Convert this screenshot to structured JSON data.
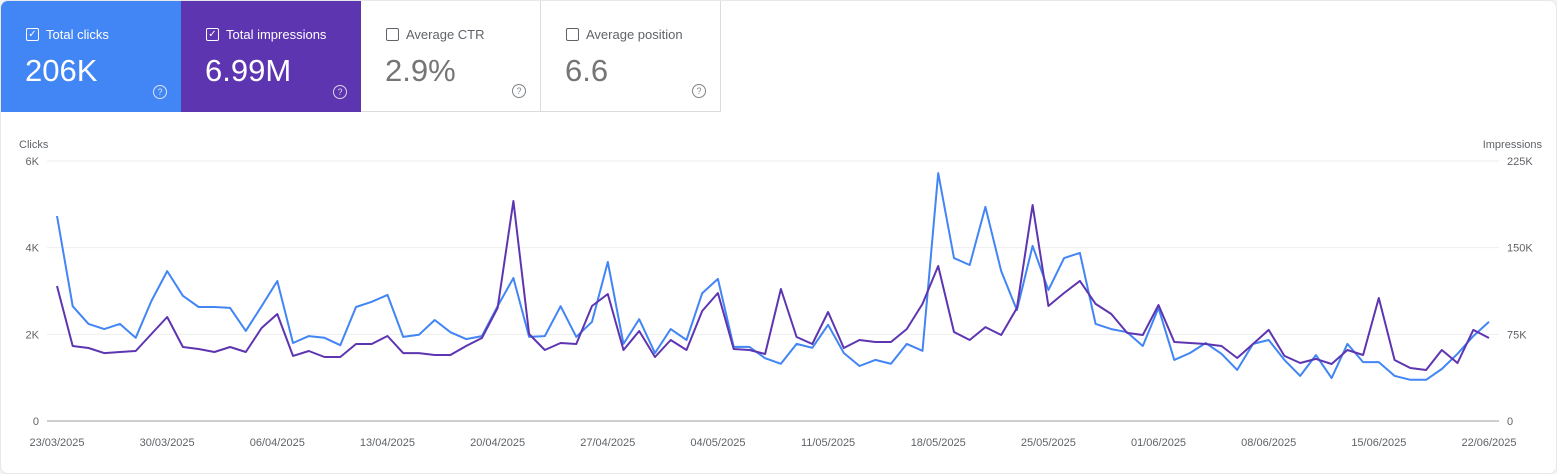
{
  "cards": [
    {
      "label": "Total clicks",
      "value": "206K",
      "checked": true,
      "color": "#4285f4",
      "help_icon": "help-circle-icon"
    },
    {
      "label": "Total impressions",
      "value": "6.99M",
      "checked": true,
      "color": "#5e35b1",
      "help_icon": "help-circle-icon"
    },
    {
      "label": "Average CTR",
      "value": "2.9%",
      "checked": false,
      "help_icon": "help-circle-icon"
    },
    {
      "label": "Average position",
      "value": "6.6",
      "checked": false,
      "help_icon": "help-circle-icon"
    }
  ],
  "chart_data": {
    "type": "line",
    "y_left_label": "Clicks",
    "y_right_label": "Impressions",
    "y_left_range": [
      0,
      6000
    ],
    "y_right_range": [
      0,
      225000
    ],
    "y_left_ticks": [
      "0",
      "2K",
      "4K",
      "6K"
    ],
    "y_right_ticks": [
      "0",
      "75K",
      "150K",
      "225K"
    ],
    "x_start": "2025-03-23",
    "x_end": "2025-06-22",
    "x_tick_labels": [
      "23/03/2025",
      "30/03/2025",
      "06/04/2025",
      "13/04/2025",
      "20/04/2025",
      "27/04/2025",
      "04/05/2025",
      "11/05/2025",
      "18/05/2025",
      "25/05/2025",
      "01/06/2025",
      "08/06/2025",
      "15/06/2025",
      "22/06/2025"
    ],
    "grid": true,
    "series": [
      {
        "name": "Clicks",
        "axis": "left",
        "color": "#4285f4",
        "values": [
          4730,
          2650,
          2240,
          2120,
          2240,
          1920,
          2770,
          3460,
          2890,
          2630,
          2630,
          2610,
          2080,
          2650,
          3230,
          1800,
          1960,
          1920,
          1750,
          2630,
          2750,
          2910,
          1940,
          1990,
          2330,
          2050,
          1890,
          1960,
          2650,
          3300,
          1940,
          1960,
          2650,
          1940,
          2290,
          3670,
          1780,
          2350,
          1570,
          2120,
          1870,
          2950,
          3280,
          1710,
          1710,
          1450,
          1320,
          1780,
          1690,
          2220,
          1570,
          1270,
          1410,
          1320,
          1780,
          1620,
          5720,
          3760,
          3600,
          4940,
          3460,
          2560,
          4040,
          3020,
          3760,
          3880,
          2240,
          2120,
          2050,
          1730,
          2610,
          1410,
          1570,
          1800,
          1550,
          1180,
          1780,
          1870,
          1410,
          1040,
          1520,
          990,
          1780,
          1360,
          1360,
          1040,
          950,
          950,
          1200,
          1550,
          1960,
          2290
        ]
      },
      {
        "name": "Impressions",
        "axis": "right",
        "color": "#5e35b1",
        "values": [
          116800,
          64900,
          63200,
          58800,
          59700,
          60600,
          75300,
          90000,
          64000,
          62300,
          59700,
          64000,
          59700,
          80500,
          92600,
          56300,
          60600,
          55400,
          55400,
          66600,
          66600,
          73600,
          58800,
          58800,
          57100,
          57100,
          64900,
          71800,
          97800,
          190400,
          75300,
          61400,
          67500,
          66600,
          99500,
          109900,
          61400,
          77900,
          55400,
          70100,
          61400,
          95200,
          110800,
          62300,
          61400,
          58000,
          114200,
          72700,
          66600,
          94300,
          63200,
          70100,
          68400,
          68400,
          79600,
          101300,
          134100,
          77000,
          70100,
          81300,
          74400,
          97800,
          186900,
          99500,
          110800,
          121200,
          101300,
          92600,
          76200,
          74400,
          100400,
          68400,
          67500,
          66600,
          64900,
          54500,
          66600,
          78800,
          56300,
          50200,
          53700,
          49300,
          61400,
          57100,
          106400,
          52800,
          45900,
          44100,
          61400,
          50200,
          78800,
          71800
        ]
      }
    ]
  }
}
